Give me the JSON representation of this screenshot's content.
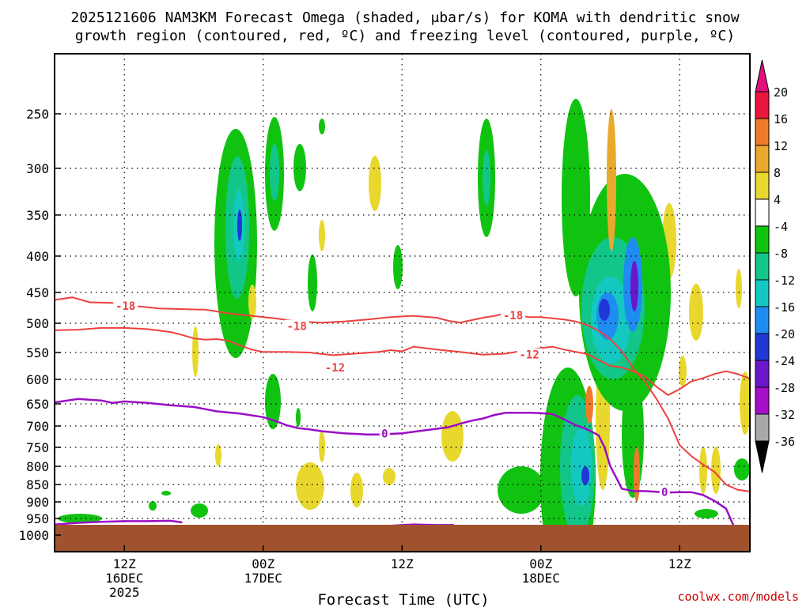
{
  "chart_data": {
    "type": "heatmap",
    "title_line1": "2025121606 NAM3KM Forecast Omega (shaded, μbar/s) for KOMA with dendritic snow",
    "title_line2": "growth region (contoured, red, ºC) and freezing level (contoured, purple, ºC)",
    "xlabel": "Forecast Time (UTC)",
    "credit": "coolwx.com/models",
    "x_range_hours": [
      0,
      60
    ],
    "x_ticks": [
      {
        "hour": 6,
        "label": "12Z",
        "sub1": "16DEC",
        "sub2": "2025"
      },
      {
        "hour": 18,
        "label": "00Z",
        "sub1": "17DEC",
        "sub2": ""
      },
      {
        "hour": 30,
        "label": "12Z",
        "sub1": "",
        "sub2": ""
      },
      {
        "hour": 42,
        "label": "00Z",
        "sub1": "18DEC",
        "sub2": ""
      },
      {
        "hour": 54,
        "label": "12Z",
        "sub1": "",
        "sub2": ""
      }
    ],
    "y_ticks": [
      250,
      300,
      350,
      400,
      450,
      500,
      550,
      600,
      650,
      700,
      750,
      800,
      850,
      900,
      950,
      1000
    ],
    "y_range_hpa": [
      200,
      1030
    ],
    "colorbar_labels": [
      "20",
      "16",
      "12",
      "8",
      "4",
      "-4",
      "-8",
      "-12",
      "-16",
      "-20",
      "-24",
      "-28",
      "-32",
      "-36"
    ],
    "colorbar_colors": [
      "#e8153c",
      "#ef7a2a",
      "#e9a92c",
      "#e8d82e",
      "#ffffff",
      "#11c311",
      "#12c68a",
      "#14c8c2",
      "#1f8cf0",
      "#2137d6",
      "#6a17cc",
      "#a70ec8",
      "#a8a8a8"
    ],
    "colorbar_top_color": "#e0117a",
    "colorbar_bottom_color": "#000000",
    "colors": {
      "dgz": "#ee4040",
      "freezing": "#9a0fc4",
      "terrain": "#a0522d"
    },
    "contour_labels": [
      {
        "text": "-18",
        "hour": 6.1,
        "hpa": 472,
        "color": "#ee4040"
      },
      {
        "text": "-18",
        "hour": 20.9,
        "hpa": 505,
        "color": "#ee4040"
      },
      {
        "text": "-12",
        "hour": 24.2,
        "hpa": 578,
        "color": "#ee4040"
      },
      {
        "text": "-18",
        "hour": 39.6,
        "hpa": 487,
        "color": "#ee4040"
      },
      {
        "text": "-12",
        "hour": 41.0,
        "hpa": 554,
        "color": "#ee4040"
      },
      {
        "text": "0",
        "hour": 28.5,
        "hpa": 718,
        "color": "#9a0fc4"
      },
      {
        "text": "0",
        "hour": 52.7,
        "hpa": 872,
        "color": "#9a0fc4"
      }
    ],
    "dgz_minus18_line": [
      [
        0,
        462
      ],
      [
        1.5,
        458
      ],
      [
        3,
        466
      ],
      [
        5,
        467
      ],
      [
        7,
        472
      ],
      [
        9,
        476
      ],
      [
        11,
        477
      ],
      [
        13,
        478
      ],
      [
        15,
        484
      ],
      [
        17,
        488
      ],
      [
        19,
        492
      ],
      [
        21,
        497
      ],
      [
        23,
        499
      ],
      [
        25,
        497
      ],
      [
        27,
        494
      ],
      [
        29,
        490
      ],
      [
        31,
        488
      ],
      [
        33,
        491
      ],
      [
        34,
        496
      ],
      [
        35,
        499
      ],
      [
        36,
        495
      ],
      [
        37,
        491
      ],
      [
        38,
        488
      ],
      [
        39,
        484
      ],
      [
        40,
        487
      ],
      [
        41,
        490
      ],
      [
        42,
        490
      ],
      [
        43,
        492
      ],
      [
        44,
        494
      ],
      [
        45,
        497
      ],
      [
        46,
        503
      ],
      [
        47,
        513
      ],
      [
        48,
        527
      ],
      [
        49,
        548
      ],
      [
        50,
        580
      ],
      [
        51,
        605
      ],
      [
        52,
        640
      ],
      [
        53,
        683
      ],
      [
        54,
        745
      ],
      [
        55,
        773
      ],
      [
        56,
        795
      ],
      [
        57,
        815
      ],
      [
        58,
        850
      ],
      [
        59,
        865
      ],
      [
        60,
        870
      ]
    ],
    "dgz_minus12_line": [
      [
        0,
        512
      ],
      [
        2,
        511
      ],
      [
        4,
        508
      ],
      [
        6,
        508
      ],
      [
        8,
        510
      ],
      [
        10,
        515
      ],
      [
        11,
        520
      ],
      [
        12,
        526
      ],
      [
        13,
        528
      ],
      [
        14,
        527
      ],
      [
        15,
        530
      ],
      [
        16,
        538
      ],
      [
        17,
        545
      ],
      [
        18,
        549
      ],
      [
        20,
        549
      ],
      [
        22,
        550
      ],
      [
        24,
        555
      ],
      [
        26,
        552
      ],
      [
        28,
        549
      ],
      [
        29,
        546
      ],
      [
        30,
        548
      ],
      [
        31,
        540
      ],
      [
        33,
        545
      ],
      [
        35,
        549
      ],
      [
        37,
        554
      ],
      [
        39,
        552
      ],
      [
        41,
        545
      ],
      [
        43,
        540
      ],
      [
        44,
        545
      ],
      [
        46,
        553
      ],
      [
        48,
        575
      ],
      [
        49,
        578
      ],
      [
        50,
        585
      ],
      [
        51,
        595
      ],
      [
        52,
        615
      ],
      [
        53,
        632
      ],
      [
        54,
        620
      ],
      [
        55,
        604
      ],
      [
        56,
        598
      ],
      [
        57,
        590
      ],
      [
        58,
        585
      ],
      [
        59,
        590
      ],
      [
        60,
        598
      ]
    ],
    "freezing_line": [
      [
        0,
        647
      ],
      [
        2,
        640
      ],
      [
        4,
        643
      ],
      [
        5,
        648
      ],
      [
        6,
        645
      ],
      [
        8,
        648
      ],
      [
        10,
        653
      ],
      [
        12,
        657
      ],
      [
        14,
        667
      ],
      [
        16,
        672
      ],
      [
        18,
        680
      ],
      [
        19,
        688
      ],
      [
        20,
        698
      ],
      [
        21,
        705
      ],
      [
        22,
        708
      ],
      [
        23,
        712
      ],
      [
        25,
        717
      ],
      [
        27,
        720
      ],
      [
        28,
        720
      ],
      [
        30,
        717
      ],
      [
        32,
        710
      ],
      [
        34,
        703
      ],
      [
        35,
        695
      ],
      [
        36,
        688
      ],
      [
        37,
        683
      ],
      [
        38,
        675
      ],
      [
        39,
        670
      ],
      [
        40,
        670
      ],
      [
        41,
        670
      ],
      [
        42,
        671
      ],
      [
        43,
        673
      ],
      [
        44,
        685
      ],
      [
        45,
        698
      ],
      [
        46,
        708
      ],
      [
        47,
        722
      ],
      [
        47.5,
        750
      ],
      [
        48,
        800
      ],
      [
        48.5,
        830
      ],
      [
        49,
        862
      ],
      [
        50,
        869
      ],
      [
        51,
        869
      ],
      [
        52,
        871
      ],
      [
        53,
        873
      ],
      [
        54,
        872
      ],
      [
        55,
        872
      ],
      [
        56,
        880
      ],
      [
        57,
        897
      ],
      [
        58,
        920
      ],
      [
        58.7,
        975
      ]
    ],
    "freezing_lower_line": [
      [
        0,
        968
      ],
      [
        2,
        963
      ],
      [
        4,
        960
      ],
      [
        6,
        958
      ],
      [
        8,
        958
      ],
      [
        10,
        957
      ],
      [
        11,
        962
      ]
    ],
    "freezing_lower_line2": [
      [
        27,
        973
      ],
      [
        29,
        972
      ],
      [
        31,
        968
      ],
      [
        33,
        970
      ],
      [
        34.5,
        970
      ]
    ]
  }
}
